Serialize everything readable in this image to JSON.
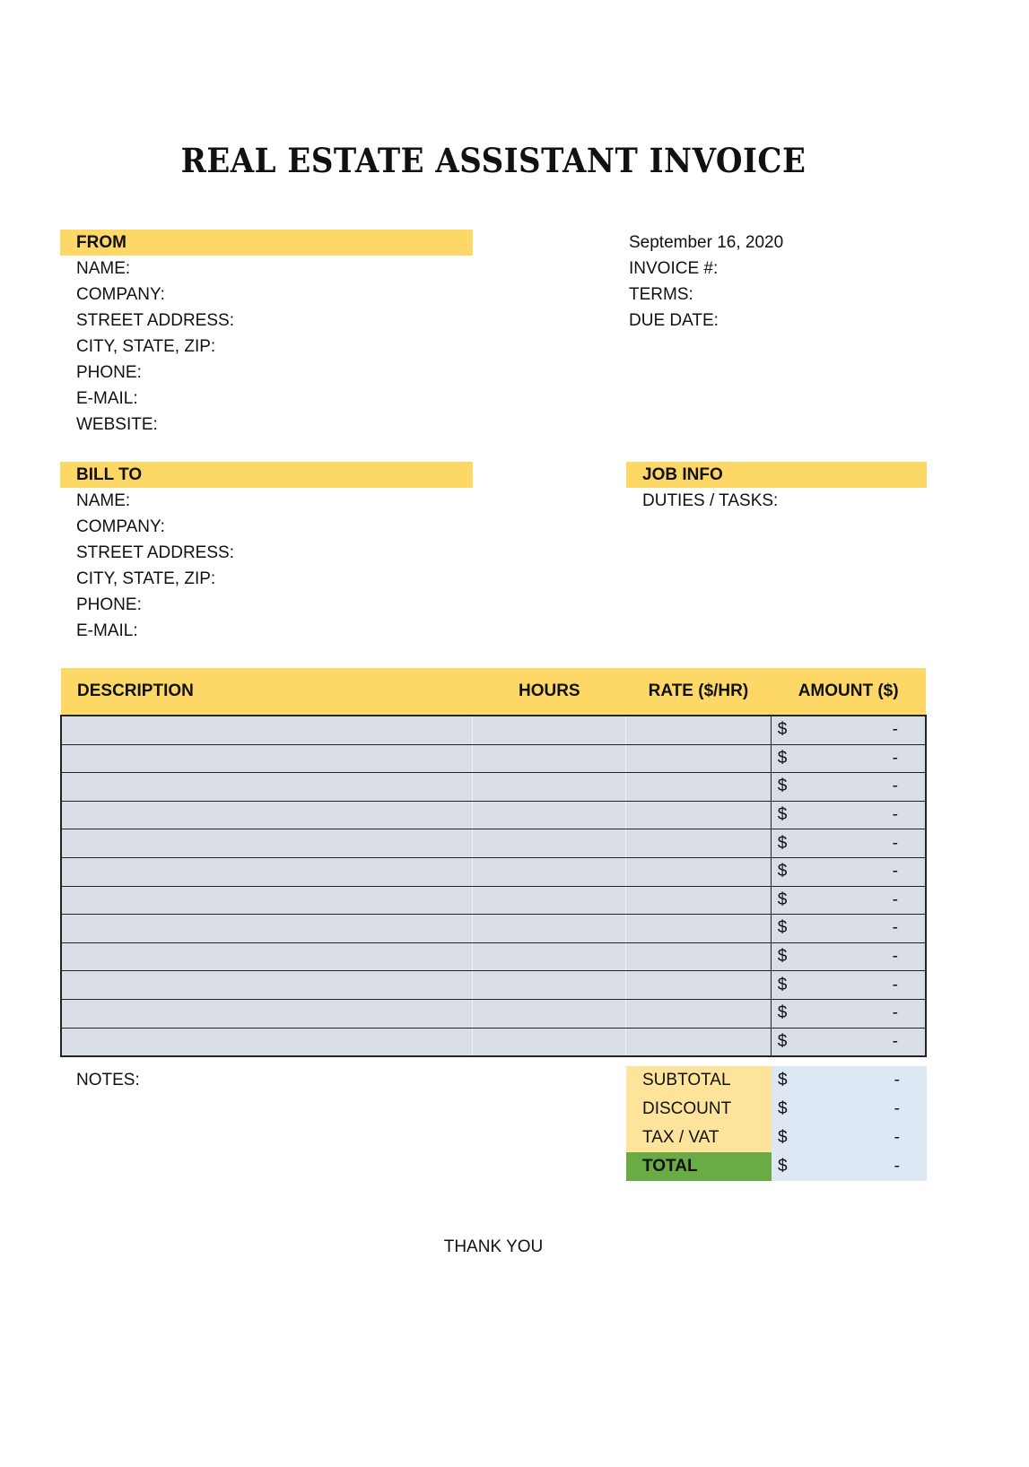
{
  "title": "REAL ESTATE ASSISTANT INVOICE",
  "from": {
    "header": "FROM",
    "fields": [
      "NAME:",
      "COMPANY:",
      "STREET ADDRESS:",
      "CITY, STATE, ZIP:",
      "PHONE:",
      "E-MAIL:",
      "WEBSITE:"
    ]
  },
  "invoice_info": {
    "date": "September 16, 2020",
    "fields": [
      "INVOICE #:",
      "TERMS:",
      "DUE DATE:"
    ]
  },
  "bill_to": {
    "header": "BILL TO",
    "fields": [
      "NAME:",
      "COMPANY:",
      "STREET ADDRESS:",
      "CITY, STATE, ZIP:",
      "PHONE:",
      "E-MAIL:"
    ]
  },
  "job_info": {
    "header": "JOB INFO",
    "fields": [
      "DUTIES / TASKS:"
    ]
  },
  "table": {
    "columns": [
      "DESCRIPTION",
      "HOURS",
      "RATE ($/HR)",
      "AMOUNT ($)"
    ],
    "currency": "$",
    "rows": [
      {
        "description": "",
        "hours": "",
        "rate": "",
        "amount": "-"
      },
      {
        "description": "",
        "hours": "",
        "rate": "",
        "amount": "-"
      },
      {
        "description": "",
        "hours": "",
        "rate": "",
        "amount": "-"
      },
      {
        "description": "",
        "hours": "",
        "rate": "",
        "amount": "-"
      },
      {
        "description": "",
        "hours": "",
        "rate": "",
        "amount": "-"
      },
      {
        "description": "",
        "hours": "",
        "rate": "",
        "amount": "-"
      },
      {
        "description": "",
        "hours": "",
        "rate": "",
        "amount": "-"
      },
      {
        "description": "",
        "hours": "",
        "rate": "",
        "amount": "-"
      },
      {
        "description": "",
        "hours": "",
        "rate": "",
        "amount": "-"
      },
      {
        "description": "",
        "hours": "",
        "rate": "",
        "amount": "-"
      },
      {
        "description": "",
        "hours": "",
        "rate": "",
        "amount": "-"
      },
      {
        "description": "",
        "hours": "",
        "rate": "",
        "amount": "-"
      }
    ]
  },
  "notes_label": "NOTES:",
  "summary": [
    {
      "label": "SUBTOTAL",
      "currency": "$",
      "value": "-"
    },
    {
      "label": "DISCOUNT",
      "currency": "$",
      "value": "-"
    },
    {
      "label": "TAX / VAT",
      "currency": "$",
      "value": "-"
    },
    {
      "label": "TOTAL",
      "currency": "$",
      "value": "-"
    }
  ],
  "footer": "THANK YOU",
  "colors": {
    "header_yellow": "#fdd867",
    "row_gray": "#d8dde6",
    "summary_label": "#fde49a",
    "summary_value": "#dde8f4",
    "total_green": "#6aab46"
  }
}
